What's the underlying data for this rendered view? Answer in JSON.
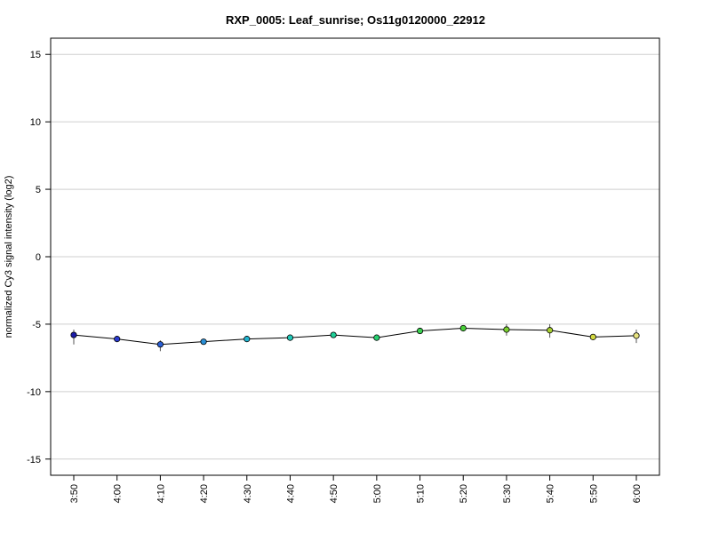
{
  "chart_data": {
    "type": "line",
    "title": "RXP_0005: Leaf_sunrise; Os11g0120000_22912",
    "xlabel": "",
    "ylabel": "normalized Cy3 signal intensity (log2)",
    "ylim": [
      -16.2,
      16.2
    ],
    "yticks": [
      -15,
      -10,
      -5,
      0,
      5,
      10,
      15
    ],
    "ytick_labels": [
      "-15",
      "-10",
      "-5",
      "0",
      "5",
      "10",
      "15"
    ],
    "grid": "horizontal",
    "categories": [
      "3:50",
      "4:00",
      "4:10",
      "4:20",
      "4:30",
      "4:40",
      "4:50",
      "5:00",
      "5:10",
      "5:20",
      "5:30",
      "5:40",
      "5:50",
      "6:00"
    ],
    "series": [
      {
        "values": [
          -5.8,
          -6.1,
          -6.5,
          -6.3,
          -6.1,
          -6.0,
          -5.8,
          -6.0,
          -5.5,
          -5.3,
          -5.4,
          -5.45,
          -5.95,
          -5.85
        ],
        "err_low": [
          -6.5,
          -6.2,
          -7.0,
          -6.5,
          -6.25,
          -6.1,
          -5.9,
          -6.1,
          -5.6,
          -5.4,
          -5.85,
          -6.0,
          -6.0,
          -6.4
        ],
        "err_high": [
          -5.4,
          -6.0,
          -6.2,
          -6.15,
          -6.0,
          -5.9,
          -5.7,
          -5.9,
          -5.4,
          -5.2,
          -5.0,
          -5.0,
          -5.9,
          -5.4
        ],
        "colors": [
          "#1a1aa8",
          "#2a3acf",
          "#2a5fd6",
          "#2a8fd6",
          "#20b4d0",
          "#20c8b8",
          "#20d098",
          "#28d070",
          "#3ad050",
          "#48d038",
          "#7ad030",
          "#a8d030",
          "#d2d840",
          "#e8e480"
        ],
        "line_color": "#000000"
      }
    ]
  }
}
